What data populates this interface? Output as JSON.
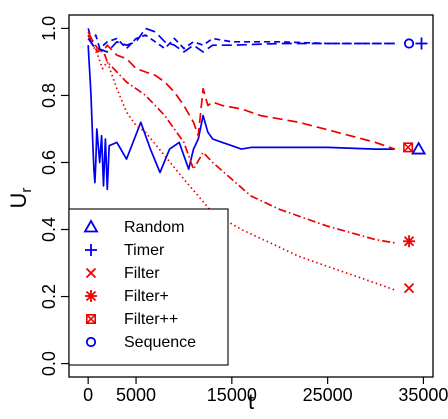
{
  "chart_data": {
    "type": "line",
    "title": "",
    "xlabel": "t",
    "ylabel_main": "U",
    "ylabel_sub": "r",
    "xlim": [
      -2000,
      36000
    ],
    "ylim": [
      -0.04,
      1.04
    ],
    "xticks": [
      0,
      5000,
      15000,
      25000,
      35000
    ],
    "xtick_labels": [
      "0",
      "5000",
      "15000",
      "25000",
      "35000"
    ],
    "yticks": [
      0.0,
      0.2,
      0.4,
      0.6,
      0.8,
      1.0
    ],
    "ytick_labels": [
      "0.0",
      "0.2",
      "0.4",
      "0.6",
      "0.8",
      "1.0"
    ],
    "grid": false,
    "legend_position": "bottom-left",
    "series": [
      {
        "name": "Random",
        "color": "#0000ee",
        "dash": "solid",
        "marker": "triangle",
        "marker_x": 34500,
        "marker_y": 0.64,
        "x": [
          0,
          100,
          200,
          300,
          400,
          500,
          600,
          700,
          800,
          900,
          1000,
          1200,
          1400,
          1600,
          1800,
          2000,
          2200,
          3000,
          4000,
          5500,
          6500,
          7500,
          8500,
          9500,
          10500,
          11000,
          11500,
          12000,
          12500,
          13000,
          14000,
          15000,
          16000,
          17000,
          20000,
          25000,
          30000,
          32000
        ],
        "y": [
          0.95,
          0.9,
          0.85,
          0.8,
          0.72,
          0.65,
          0.58,
          0.54,
          0.6,
          0.7,
          0.67,
          0.6,
          0.68,
          0.53,
          0.67,
          0.52,
          0.65,
          0.66,
          0.61,
          0.72,
          0.64,
          0.57,
          0.64,
          0.66,
          0.58,
          0.64,
          0.67,
          0.74,
          0.69,
          0.67,
          0.66,
          0.65,
          0.64,
          0.645,
          0.645,
          0.645,
          0.64,
          0.64
        ]
      },
      {
        "name": "Timer",
        "color": "#0000ee",
        "dash": "dashed",
        "marker": "plus",
        "marker_x": 34800,
        "marker_y": 0.955,
        "x": [
          0,
          400,
          800,
          1200,
          2000,
          3000,
          4000,
          5000,
          6000,
          7000,
          8000,
          9000,
          10000,
          11000,
          12000,
          13000,
          15000,
          20000,
          25000,
          30000,
          32000
        ],
        "y": [
          1.0,
          0.96,
          0.98,
          0.94,
          0.96,
          0.97,
          0.94,
          0.97,
          0.98,
          0.96,
          0.94,
          0.97,
          0.94,
          0.96,
          0.95,
          0.97,
          0.96,
          0.96,
          0.955,
          0.955,
          0.955
        ]
      },
      {
        "name": "Filter",
        "color": "#ee0000",
        "dash": "dotted",
        "marker": "x",
        "marker_x": 33500,
        "marker_y": 0.225,
        "x": [
          0,
          500,
          1000,
          1500,
          2000,
          3000,
          4000,
          5000,
          6000,
          8000,
          10000,
          13000,
          16000,
          19000,
          22000,
          25000,
          28000,
          30000,
          32000
        ],
        "y": [
          0.98,
          0.95,
          0.92,
          0.88,
          0.9,
          0.82,
          0.75,
          0.71,
          0.69,
          0.62,
          0.55,
          0.45,
          0.4,
          0.36,
          0.32,
          0.29,
          0.26,
          0.24,
          0.22
        ]
      },
      {
        "name": "Filter+",
        "color": "#ee0000",
        "dash": "dashdot",
        "marker": "asterisk",
        "marker_x": 33500,
        "marker_y": 0.365,
        "x": [
          0,
          500,
          1000,
          1500,
          2000,
          3000,
          4000,
          5000,
          6000,
          8000,
          10000,
          11000,
          12000,
          13000,
          15000,
          17000,
          20000,
          25000,
          30000,
          32000
        ],
        "y": [
          0.98,
          0.95,
          0.93,
          0.94,
          0.9,
          0.87,
          0.84,
          0.82,
          0.8,
          0.74,
          0.66,
          0.58,
          0.63,
          0.6,
          0.55,
          0.5,
          0.46,
          0.41,
          0.37,
          0.36
        ]
      },
      {
        "name": "Filter++",
        "color": "#ee0000",
        "dash": "longdash",
        "marker": "boxx",
        "marker_x": 33400,
        "marker_y": 0.645,
        "x": [
          0,
          500,
          1000,
          1500,
          2000,
          3000,
          4000,
          5000,
          6000,
          7000,
          8000,
          9000,
          10000,
          11000,
          11500,
          12000,
          12500,
          13000,
          14000,
          16000,
          18000,
          22000,
          26000,
          30000,
          32000
        ],
        "y": [
          0.99,
          0.96,
          0.94,
          0.93,
          0.95,
          0.92,
          0.91,
          0.88,
          0.87,
          0.86,
          0.84,
          0.81,
          0.77,
          0.72,
          0.68,
          0.82,
          0.77,
          0.78,
          0.77,
          0.76,
          0.74,
          0.72,
          0.69,
          0.66,
          0.64
        ]
      },
      {
        "name": "Sequence",
        "color": "#0000ee",
        "dash": "longdash",
        "marker": "circle",
        "marker_x": 33500,
        "marker_y": 0.955,
        "x": [
          0,
          500,
          1000,
          2000,
          3000,
          4000,
          5000,
          6000,
          7000,
          8000,
          9000,
          10000,
          11000,
          12000,
          13000,
          15000,
          20000,
          25000,
          30000,
          32000
        ],
        "y": [
          0.97,
          0.95,
          0.94,
          0.93,
          0.96,
          0.95,
          0.96,
          1.0,
          0.99,
          0.96,
          0.95,
          0.93,
          0.95,
          0.93,
          0.95,
          0.95,
          0.955,
          0.955,
          0.955,
          0.955
        ]
      }
    ]
  }
}
